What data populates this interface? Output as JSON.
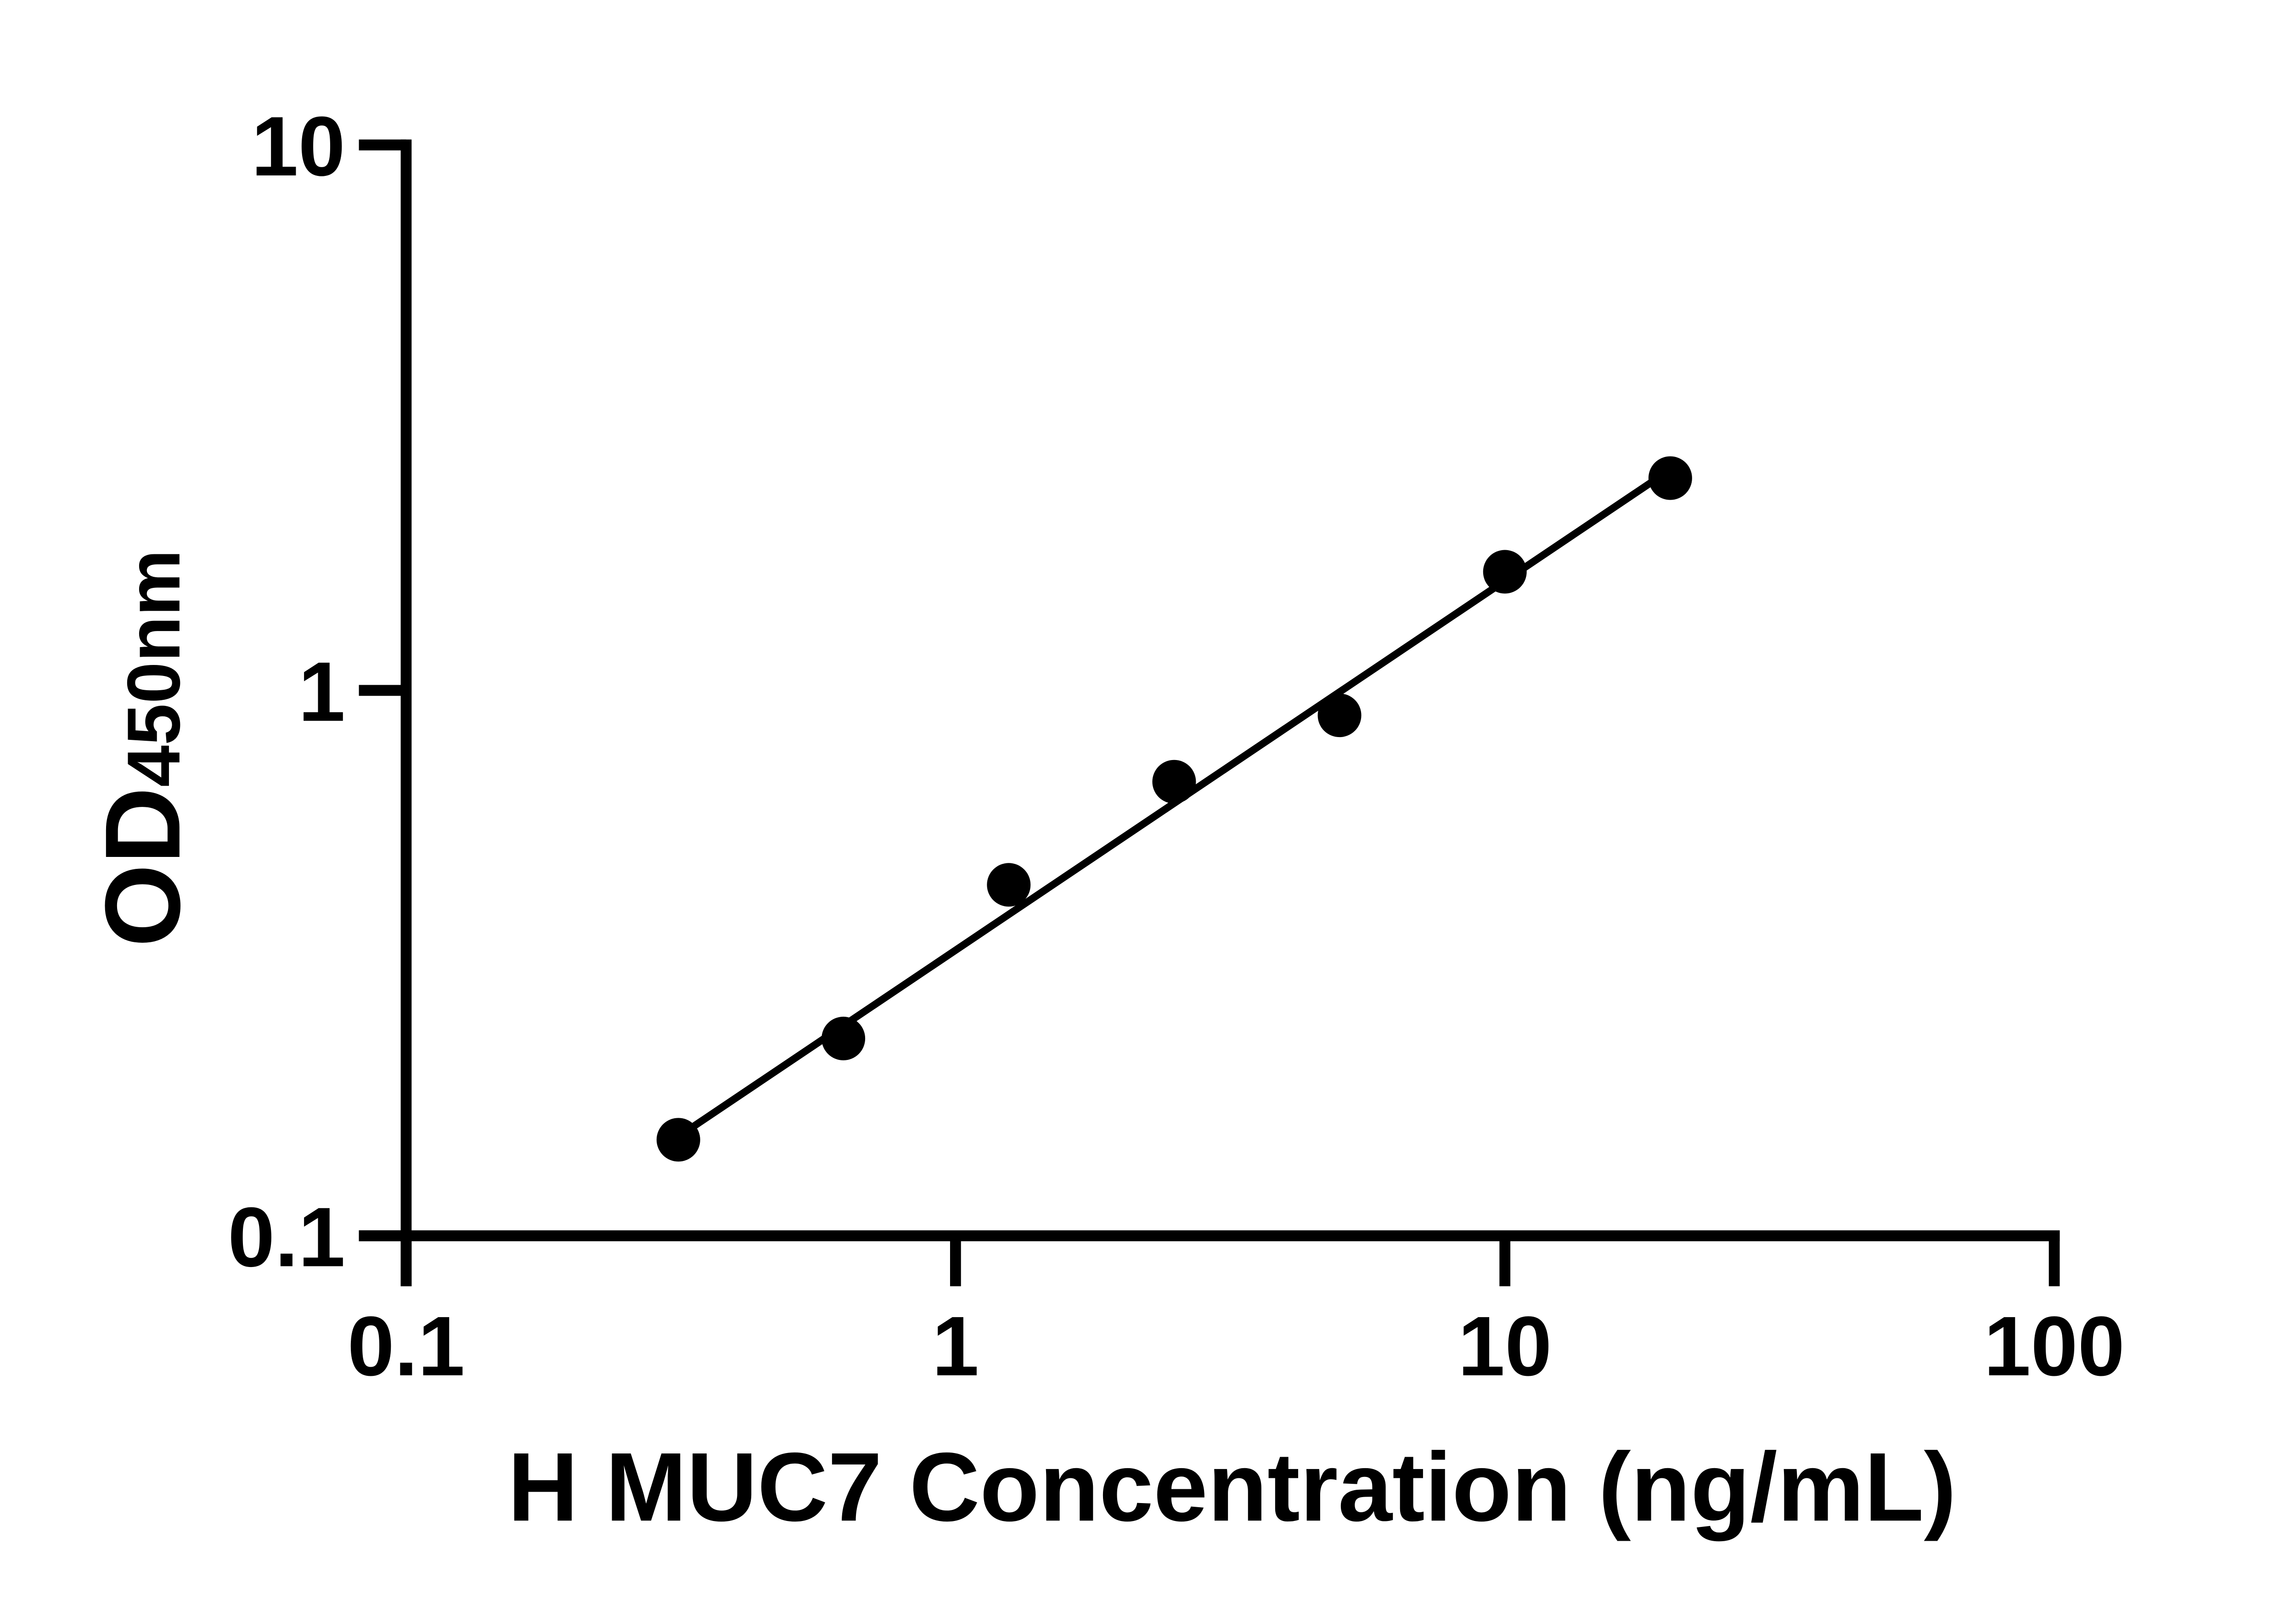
{
  "figure": {
    "description": "ELISA standard curve scatter plot with fitted line",
    "background_color": "#ffffff",
    "ink_color": "#000000"
  },
  "chart_data": {
    "type": "scatter",
    "title": "",
    "xlabel": "H MUC7 Concentration (ng/mL)",
    "ylabel": {
      "main": "OD",
      "sub": "450nm"
    },
    "x_scale": "log10",
    "y_scale": "log10",
    "xlim": [
      0.1,
      100
    ],
    "ylim": [
      0.1,
      10
    ],
    "grid": false,
    "legend": null,
    "x_ticks": [
      {
        "value": 0.1,
        "label": "0.1"
      },
      {
        "value": 1,
        "label": "1"
      },
      {
        "value": 10,
        "label": "10"
      },
      {
        "value": 100,
        "label": "100"
      }
    ],
    "y_ticks": [
      {
        "value": 0.1,
        "label": "0.1"
      },
      {
        "value": 1,
        "label": "1"
      },
      {
        "value": 10,
        "label": "10"
      }
    ],
    "series": [
      {
        "name": "standard-curve-points",
        "marker": "filled-circle",
        "color": "#000000",
        "points": [
          {
            "x": 0.313,
            "y": 0.15
          },
          {
            "x": 0.625,
            "y": 0.23
          },
          {
            "x": 1.25,
            "y": 0.44
          },
          {
            "x": 2.5,
            "y": 0.68
          },
          {
            "x": 5,
            "y": 0.9
          },
          {
            "x": 10,
            "y": 1.65
          },
          {
            "x": 20,
            "y": 2.45
          }
        ]
      }
    ],
    "fit_line": {
      "x1": 0.313,
      "y1": 0.152,
      "x2": 20,
      "y2": 2.54,
      "color": "#000000"
    }
  }
}
